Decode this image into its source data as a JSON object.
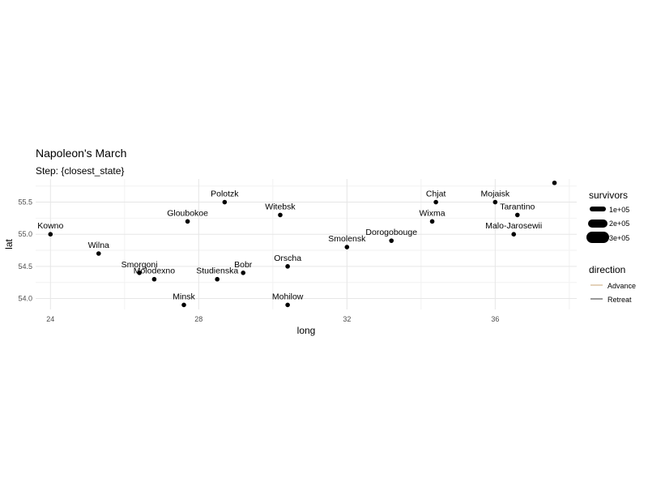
{
  "chart_data": {
    "type": "scatter",
    "title": "Napoleon's March",
    "subtitle": "Step: {closest_state}",
    "xlabel": "long",
    "ylabel": "lat",
    "xlim": [
      23.6,
      38.2
    ],
    "ylim": [
      53.83,
      55.86
    ],
    "x_ticks": [
      "24",
      "28",
      "32",
      "36"
    ],
    "y_ticks": [
      "54.0",
      "54.5",
      "55.0",
      "55.5"
    ],
    "grid": true,
    "cities": [
      {
        "name": "Kowno",
        "long": 24.0,
        "lat": 55.0
      },
      {
        "name": "Wilna",
        "long": 25.3,
        "lat": 54.7
      },
      {
        "name": "Smorgoni",
        "long": 26.4,
        "lat": 54.4
      },
      {
        "name": "Molodexno",
        "long": 26.8,
        "lat": 54.3
      },
      {
        "name": "Gloubokoe",
        "long": 27.7,
        "lat": 55.2
      },
      {
        "name": "Minsk",
        "long": 27.6,
        "lat": 53.9
      },
      {
        "name": "Studienska",
        "long": 28.5,
        "lat": 54.3
      },
      {
        "name": "Polotzk",
        "long": 28.7,
        "lat": 55.5
      },
      {
        "name": "Bobr",
        "long": 29.2,
        "lat": 54.4
      },
      {
        "name": "Witebsk",
        "long": 30.2,
        "lat": 55.3
      },
      {
        "name": "Orscha",
        "long": 30.4,
        "lat": 54.5
      },
      {
        "name": "Mohilow",
        "long": 30.4,
        "lat": 53.9
      },
      {
        "name": "Smolensk",
        "long": 32.0,
        "lat": 54.8
      },
      {
        "name": "Dorogobouge",
        "long": 33.2,
        "lat": 54.9
      },
      {
        "name": "Wixma",
        "long": 34.3,
        "lat": 55.2
      },
      {
        "name": "Chjat",
        "long": 34.4,
        "lat": 55.5
      },
      {
        "name": "Mojaisk",
        "long": 36.0,
        "lat": 55.5
      },
      {
        "name": "Tarantino",
        "long": 36.6,
        "lat": 55.3
      },
      {
        "name": "Malo-Jarosewii",
        "long": 36.5,
        "lat": 55.0
      }
    ],
    "extra_points": [
      {
        "long": 37.6,
        "lat": 55.8
      }
    ],
    "legend": {
      "survivors": {
        "title": "survivors",
        "entries": [
          "1e+05",
          "2e+05",
          "3e+05"
        ]
      },
      "direction": {
        "title": "direction",
        "entries": [
          {
            "label": "Advance",
            "color": "#d2b48c"
          },
          {
            "label": "Retreat",
            "color": "#555555"
          }
        ]
      }
    },
    "colors": {
      "grid_major": "#e6e6e6",
      "grid_minor": "#f2f2f2",
      "point": "#000000",
      "axis_text": "#4d4d4d"
    }
  }
}
